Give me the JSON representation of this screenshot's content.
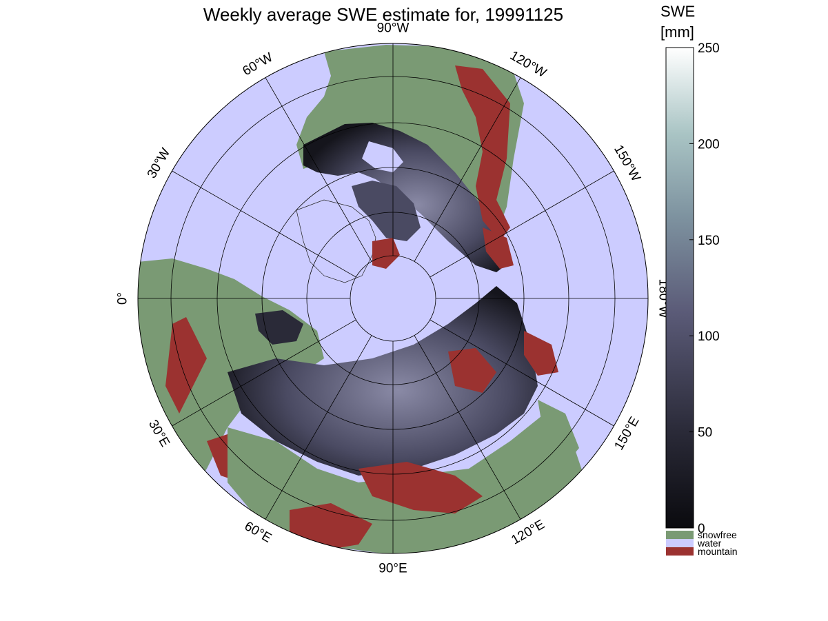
{
  "title": "Weekly average SWE estimate for, 19991125",
  "map": {
    "projection": "north polar stereographic",
    "colors": {
      "water": "#ccccff",
      "snowfree": "#7a9a74",
      "mountain": "#9b3230",
      "snow_low": "#111118",
      "snow_mid": "#55556e",
      "snow_high": "#b9c9d2"
    },
    "longitude_labels": [
      {
        "text": "90°W",
        "lon": -90
      },
      {
        "text": "120°W",
        "lon": -120
      },
      {
        "text": "150°W",
        "lon": -150
      },
      {
        "text": "180°W",
        "lon": 180
      },
      {
        "text": "150°E",
        "lon": 150
      },
      {
        "text": "120°E",
        "lon": 120
      },
      {
        "text": "90°E",
        "lon": 90
      },
      {
        "text": "60°E",
        "lon": 60
      },
      {
        "text": "30°E",
        "lon": 30
      },
      {
        "text": "0°",
        "lon": 0
      },
      {
        "text": "30°W",
        "lon": -30
      },
      {
        "text": "60°W",
        "lon": -60
      }
    ]
  },
  "colorbar": {
    "title_line1": "SWE",
    "title_line2": "[mm]",
    "range": [
      0,
      250
    ],
    "ticks": [
      "0",
      "50",
      "100",
      "150",
      "200",
      "250"
    ],
    "legend": [
      {
        "label": "snowfree",
        "color": "#7a9a74"
      },
      {
        "label": "water",
        "color": "#ccccff"
      },
      {
        "label": "mountain",
        "color": "#9b3230"
      }
    ]
  }
}
